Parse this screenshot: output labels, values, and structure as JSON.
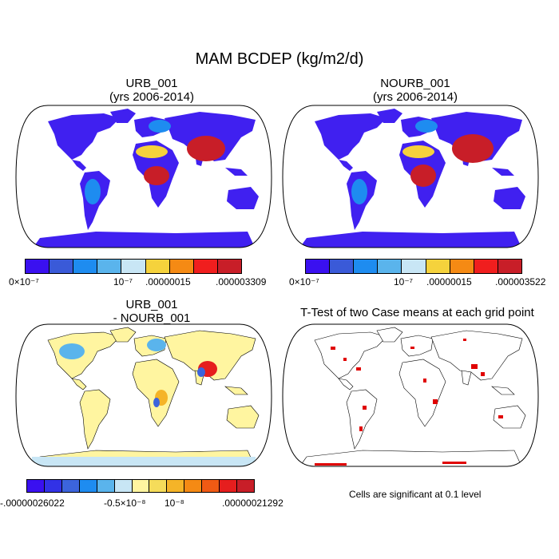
{
  "title": "MAM BCDEP (kg/m2/d)",
  "panels": [
    {
      "id": "p1",
      "title_line1": "URB_001",
      "title_line2": "(yrs 2006-2014)",
      "colorbar": {
        "colors": [
          "#3a10f0",
          "#3a5ad8",
          "#1e8cf0",
          "#5ab4ec",
          "#c8e6f5",
          "#f5d23c",
          "#f58a14",
          "#f01e1e",
          "#c81e28"
        ],
        "labels": [
          "0×10⁻⁷",
          "10⁻⁷",
          ".00000015",
          ".000003309"
        ]
      }
    },
    {
      "id": "p2",
      "title_line1": "NOURB_001",
      "title_line2": "(yrs 2006-2014)",
      "colorbar": {
        "colors": [
          "#3a10f0",
          "#3a5ad8",
          "#1e8cf0",
          "#5ab4ec",
          "#c8e6f5",
          "#f5d23c",
          "#f58a14",
          "#f01e1e",
          "#c81e28"
        ],
        "labels": [
          "0×10⁻⁷",
          "10⁻⁷",
          ".00000015",
          ".000003522"
        ]
      }
    },
    {
      "id": "p3",
      "title_line1": "URB_001",
      "title_line2": "- NOURB_001",
      "colorbar": {
        "colors": [
          "#3a10f0",
          "#3232e6",
          "#3c64dc",
          "#1e8cf0",
          "#5ab4ec",
          "#c8e6f5",
          "#fff5a0",
          "#f5dc5a",
          "#f5b428",
          "#f58a14",
          "#f05a14",
          "#e61e1e",
          "#c81e28"
        ],
        "labels": [
          "-.00000026022",
          "-0.5×10⁻⁸",
          "10⁻⁸",
          ".00000021292"
        ]
      }
    },
    {
      "id": "p4",
      "title_line1": "T-Test of two Case means at each grid point",
      "title_line2": "",
      "note": "Cells are significant at 0.1 level"
    }
  ],
  "colors": {
    "ocean": "#ffffff",
    "land_low": "#4020f0",
    "significant": "#e00000"
  }
}
